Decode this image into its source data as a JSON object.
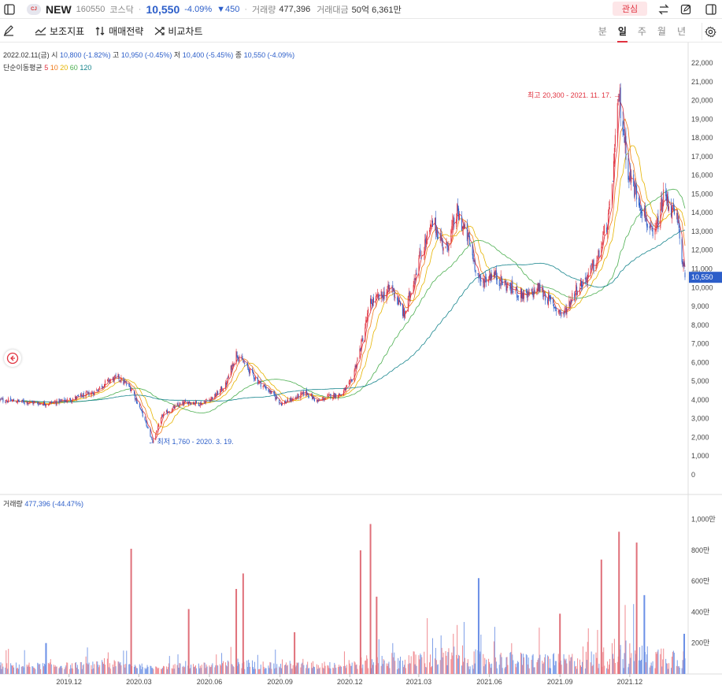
{
  "header": {
    "logo_text": "CJ",
    "name": "NEW",
    "code": "160550",
    "market": "코스닥",
    "price": "10,550",
    "change_pct": "-4.09%",
    "change_abs": "▼450",
    "volume_label": "거래량",
    "volume_value": "477,396",
    "amount_label": "거래대금",
    "amount_value": "50억 6,361만",
    "fav_label": "관심"
  },
  "toolbar": {
    "indicator_label": "보조지표",
    "strategy_label": "매매전략",
    "compare_label": "비교차트",
    "periods": [
      "분",
      "일",
      "주",
      "월",
      "년"
    ],
    "active_period": "일"
  },
  "legend": {
    "date": "2022.02.11(금)",
    "open_label": "시",
    "open": "10,800",
    "open_pct": "(-1.82%)",
    "high_label": "고",
    "high": "10,950",
    "high_pct": "(-0.45%)",
    "low_label": "저",
    "low": "10,400",
    "low_pct": "(-5.45%)",
    "close_label": "종",
    "close": "10,550",
    "close_pct": "(-4.09%)",
    "ma_label": "단순이동평균",
    "ma_periods": [
      "5",
      "10",
      "20",
      "60",
      "120"
    ],
    "volume_label": "거래량",
    "volume_value": "477,396",
    "volume_pct": "(-44.47%)"
  },
  "colors": {
    "up": "#e0323f",
    "down": "#2c5ec9",
    "ma5": "#e0323f",
    "ma10": "#f07a1a",
    "ma20": "#e6b400",
    "ma60": "#4caf50",
    "ma120": "#15848c",
    "vol_up": "#f08a90",
    "vol_down": "#7d9ee8"
  },
  "annotations": {
    "high_text": "최고 20,300 - 2021. 11. 17. →",
    "low_text": "← 최저 1,760 - 2020. 3. 19."
  },
  "chart_data": {
    "type": "candlestick",
    "title": "",
    "y_ticks": [
      "22,000",
      "21,000",
      "20,000",
      "19,000",
      "18,000",
      "17,000",
      "16,000",
      "15,000",
      "14,000",
      "13,000",
      "12,000",
      "11,000",
      "10,000",
      "9,000",
      "8,000",
      "7,000",
      "6,000",
      "5,000",
      "4,000",
      "3,000",
      "2,000",
      "1,000",
      "0"
    ],
    "y_tick_values": [
      22000,
      21000,
      20000,
      19000,
      18000,
      17000,
      16000,
      15000,
      14000,
      13000,
      12000,
      11000,
      10000,
      9000,
      8000,
      7000,
      6000,
      5000,
      4000,
      3000,
      2000,
      1000,
      0
    ],
    "ylim": [
      0,
      22000
    ],
    "x_ticks": [
      "2019.12",
      "2020.03",
      "2020.06",
      "2020.09",
      "2020.12",
      "2021.03",
      "2021.06",
      "2021.09",
      "2021.12"
    ],
    "x_tick_dates": [
      "2019-12-01",
      "2020-03-01",
      "2020-06-01",
      "2020-09-01",
      "2020-12-01",
      "2021-03-01",
      "2021-06-01",
      "2021-09-01",
      "2021-12-01"
    ],
    "x_range": [
      "2019-09-02",
      "2022-02-11"
    ],
    "last_price_label": "10,550",
    "last_price": 10550,
    "close_series": {
      "dates": [
        "2019-09-02",
        "2019-10-01",
        "2019-11-01",
        "2019-12-01",
        "2020-01-02",
        "2020-01-20",
        "2020-02-03",
        "2020-02-20",
        "2020-03-05",
        "2020-03-19",
        "2020-04-01",
        "2020-04-20",
        "2020-05-04",
        "2020-05-20",
        "2020-06-08",
        "2020-06-22",
        "2020-07-06",
        "2020-07-15",
        "2020-08-03",
        "2020-08-20",
        "2020-09-03",
        "2020-09-20",
        "2020-10-05",
        "2020-10-20",
        "2020-11-03",
        "2020-11-20",
        "2020-12-03",
        "2020-12-15",
        "2020-12-28",
        "2021-01-10",
        "2021-01-25",
        "2021-02-10",
        "2021-03-01",
        "2021-03-20",
        "2021-04-05",
        "2021-04-20",
        "2021-05-05",
        "2021-05-20",
        "2021-06-05",
        "2021-06-20",
        "2021-07-05",
        "2021-07-20",
        "2021-08-05",
        "2021-08-20",
        "2021-09-05",
        "2021-09-20",
        "2021-10-05",
        "2021-10-20",
        "2021-11-05",
        "2021-11-17",
        "2021-11-30",
        "2021-12-15",
        "2022-01-01",
        "2022-01-15",
        "2022-02-01",
        "2022-02-11"
      ],
      "values": [
        4000,
        3900,
        3800,
        4000,
        4400,
        5000,
        5200,
        4600,
        3300,
        1760,
        3200,
        3700,
        3900,
        3800,
        4200,
        4800,
        6500,
        6000,
        5000,
        4400,
        3800,
        4100,
        4400,
        3900,
        4200,
        4300,
        5000,
        6800,
        9200,
        9500,
        10000,
        8500,
        11500,
        13500,
        12000,
        14000,
        12500,
        10200,
        10800,
        10200,
        9800,
        9500,
        10000,
        9200,
        8500,
        9800,
        10500,
        11500,
        14000,
        20300,
        16000,
        14500,
        12500,
        15000,
        13500,
        10550
      ]
    },
    "ma_series": [
      {
        "name": "5",
        "values": []
      },
      {
        "name": "10",
        "values": []
      },
      {
        "name": "20",
        "values": []
      },
      {
        "name": "60",
        "values": []
      },
      {
        "name": "120",
        "values": []
      }
    ],
    "volume": {
      "y_ticks": [
        "1,000만",
        "800만",
        "600만",
        "400만",
        "200만"
      ],
      "y_tick_values": [
        10000000,
        8000000,
        6000000,
        4000000,
        2000000
      ],
      "ylim": [
        0,
        11000000
      ],
      "spikes": [
        {
          "date": "2019-11-01",
          "value": 2000000,
          "up": false
        },
        {
          "date": "2020-02-20",
          "value": 8100000,
          "up": true
        },
        {
          "date": "2020-05-05",
          "value": 4200000,
          "up": true
        },
        {
          "date": "2020-07-06",
          "value": 5500000,
          "up": true
        },
        {
          "date": "2020-07-15",
          "value": 6500000,
          "up": true
        },
        {
          "date": "2020-09-20",
          "value": 2700000,
          "up": true
        },
        {
          "date": "2020-12-15",
          "value": 8000000,
          "up": true
        },
        {
          "date": "2020-12-28",
          "value": 9700000,
          "up": true
        },
        {
          "date": "2021-01-05",
          "value": 5000000,
          "up": true
        },
        {
          "date": "2021-05-18",
          "value": 6200000,
          "up": false
        },
        {
          "date": "2021-09-01",
          "value": 3900000,
          "up": true
        },
        {
          "date": "2021-10-25",
          "value": 7400000,
          "up": true
        },
        {
          "date": "2021-11-17",
          "value": 9200000,
          "up": true
        },
        {
          "date": "2021-12-10",
          "value": 8500000,
          "up": true
        },
        {
          "date": "2021-12-20",
          "value": 5100000,
          "up": false
        },
        {
          "date": "2022-02-10",
          "value": 2600000,
          "up": false
        }
      ]
    }
  }
}
